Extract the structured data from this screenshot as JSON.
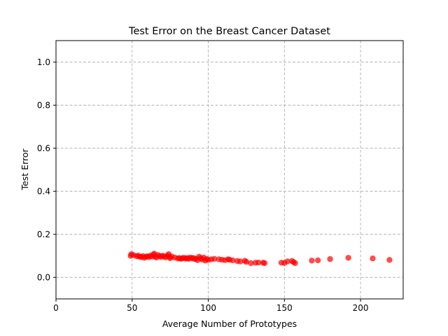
{
  "chart_data": {
    "type": "scatter",
    "title": "Test Error on the Breast Cancer Dataset",
    "xlabel": "Average Number of Prototypes",
    "ylabel": "Test Error",
    "xlim": [
      0,
      228
    ],
    "ylim": [
      -0.1,
      1.1
    ],
    "xticks": [
      0,
      50,
      100,
      150,
      200
    ],
    "yticks": [
      0.0,
      0.2,
      0.4,
      0.6,
      0.8,
      1.0
    ],
    "xtick_labels": [
      "0",
      "50",
      "100",
      "150",
      "200"
    ],
    "ytick_labels": [
      "0.0",
      "0.2",
      "0.4",
      "0.6",
      "0.8",
      "1.0"
    ],
    "grid": true,
    "point_color": "#ff0000",
    "series": [
      {
        "points": [
          [
            49,
            0.1
          ],
          [
            49.5,
            0.108
          ],
          [
            51,
            0.103
          ],
          [
            53,
            0.098
          ],
          [
            54,
            0.101
          ],
          [
            55,
            0.096
          ],
          [
            56,
            0.094
          ],
          [
            57,
            0.099
          ],
          [
            58,
            0.091
          ],
          [
            59,
            0.096
          ],
          [
            60,
            0.098
          ],
          [
            61,
            0.094
          ],
          [
            62,
            0.101
          ],
          [
            63,
            0.097
          ],
          [
            64,
            0.106
          ],
          [
            64.5,
            0.11
          ],
          [
            65,
            0.096
          ],
          [
            66,
            0.092
          ],
          [
            67,
            0.104
          ],
          [
            68,
            0.099
          ],
          [
            69,
            0.095
          ],
          [
            70,
            0.101
          ],
          [
            71,
            0.097
          ],
          [
            72,
            0.093
          ],
          [
            73,
            0.101
          ],
          [
            74,
            0.108
          ],
          [
            74.5,
            0.095
          ],
          [
            75,
            0.089
          ],
          [
            76,
            0.097
          ],
          [
            78,
            0.092
          ],
          [
            80,
            0.088
          ],
          [
            81,
            0.09
          ],
          [
            82,
            0.086
          ],
          [
            83,
            0.089
          ],
          [
            84,
            0.091
          ],
          [
            85,
            0.087
          ],
          [
            86,
            0.09
          ],
          [
            87,
            0.086
          ],
          [
            88,
            0.092
          ],
          [
            89,
            0.088
          ],
          [
            90,
            0.091
          ],
          [
            91,
            0.085
          ],
          [
            92,
            0.087
          ],
          [
            93,
            0.08
          ],
          [
            94,
            0.096
          ],
          [
            95,
            0.089
          ],
          [
            96,
            0.083
          ],
          [
            97,
            0.092
          ],
          [
            98,
            0.078
          ],
          [
            99,
            0.086
          ],
          [
            100,
            0.081
          ],
          [
            102,
            0.084
          ],
          [
            104,
            0.086
          ],
          [
            107,
            0.084
          ],
          [
            109,
            0.082
          ],
          [
            111,
            0.08
          ],
          [
            113,
            0.084
          ],
          [
            114,
            0.082
          ],
          [
            116,
            0.079
          ],
          [
            119,
            0.076
          ],
          [
            121,
            0.074
          ],
          [
            124,
            0.077
          ],
          [
            125,
            0.072
          ],
          [
            128,
            0.066
          ],
          [
            131,
            0.068
          ],
          [
            133,
            0.069
          ],
          [
            136,
            0.068
          ],
          [
            137,
            0.066
          ],
          [
            148,
            0.068
          ],
          [
            150,
            0.067
          ],
          [
            152,
            0.074
          ],
          [
            155,
            0.076
          ],
          [
            156,
            0.071
          ],
          [
            157,
            0.066
          ],
          [
            168,
            0.078
          ],
          [
            172,
            0.079
          ],
          [
            180,
            0.085
          ],
          [
            192,
            0.091
          ],
          [
            208,
            0.088
          ],
          [
            219,
            0.081
          ]
        ]
      }
    ]
  }
}
